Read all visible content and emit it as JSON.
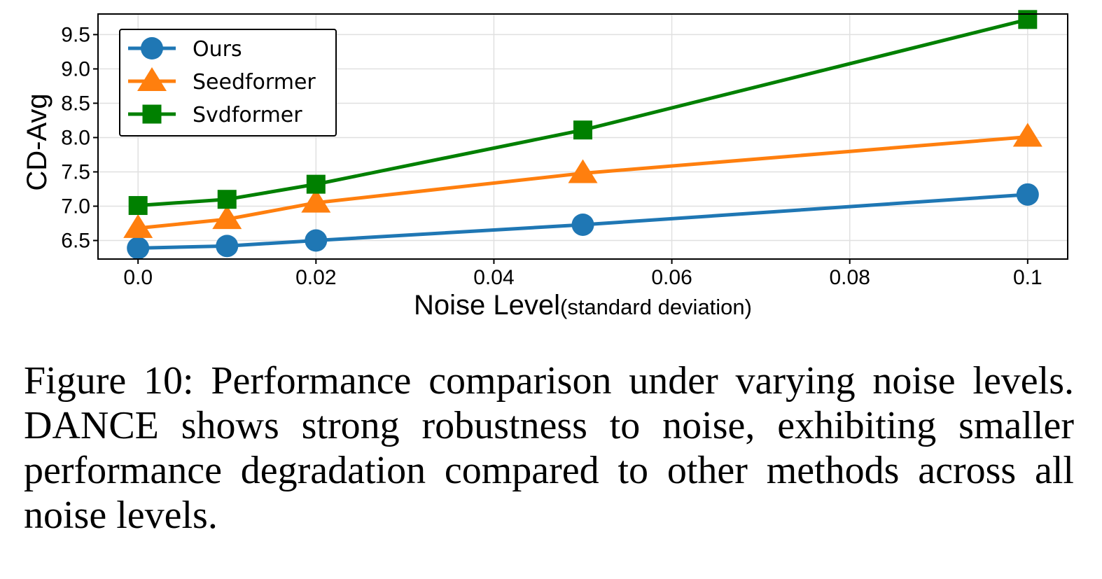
{
  "chart_data": {
    "type": "line",
    "x": [
      0.0,
      0.01,
      0.02,
      0.05,
      0.1
    ],
    "series": [
      {
        "name": "Ours",
        "color": "#1f77b4",
        "marker": "circle",
        "values": [
          6.39,
          6.42,
          6.5,
          6.73,
          7.17
        ]
      },
      {
        "name": "Seedformer",
        "color": "#ff7f0e",
        "marker": "triangle",
        "values": [
          6.68,
          6.81,
          7.05,
          7.48,
          8.01
        ]
      },
      {
        "name": "Svdformer",
        "color": "#008000",
        "marker": "square",
        "values": [
          7.01,
          7.1,
          7.32,
          8.11,
          9.72
        ]
      }
    ],
    "xlim": [
      -0.0045,
      0.1045
    ],
    "ylim": [
      6.23,
      9.8
    ],
    "xticks": [
      0.0,
      0.02,
      0.04,
      0.06,
      0.08,
      0.1
    ],
    "xtick_labels": [
      "0.0",
      "0.02",
      "0.04",
      "0.06",
      "0.08",
      "0.1"
    ],
    "yticks": [
      6.5,
      7.0,
      7.5,
      8.0,
      8.5,
      9.0,
      9.5
    ],
    "ytick_labels": [
      "6.5",
      "7.0",
      "7.5",
      "8.0",
      "8.5",
      "9.0",
      "9.5"
    ],
    "xlabel": "Noise Level",
    "xlabel_sub": "(standard deviation)",
    "ylabel": "CD-Avg",
    "grid": true,
    "legend_position": "top-left"
  },
  "caption": "Figure 10: Performance comparison under varying noise levels. DANCE shows strong robustness to noise, exhibiting smaller performance degradation compared to other methods across all noise levels."
}
